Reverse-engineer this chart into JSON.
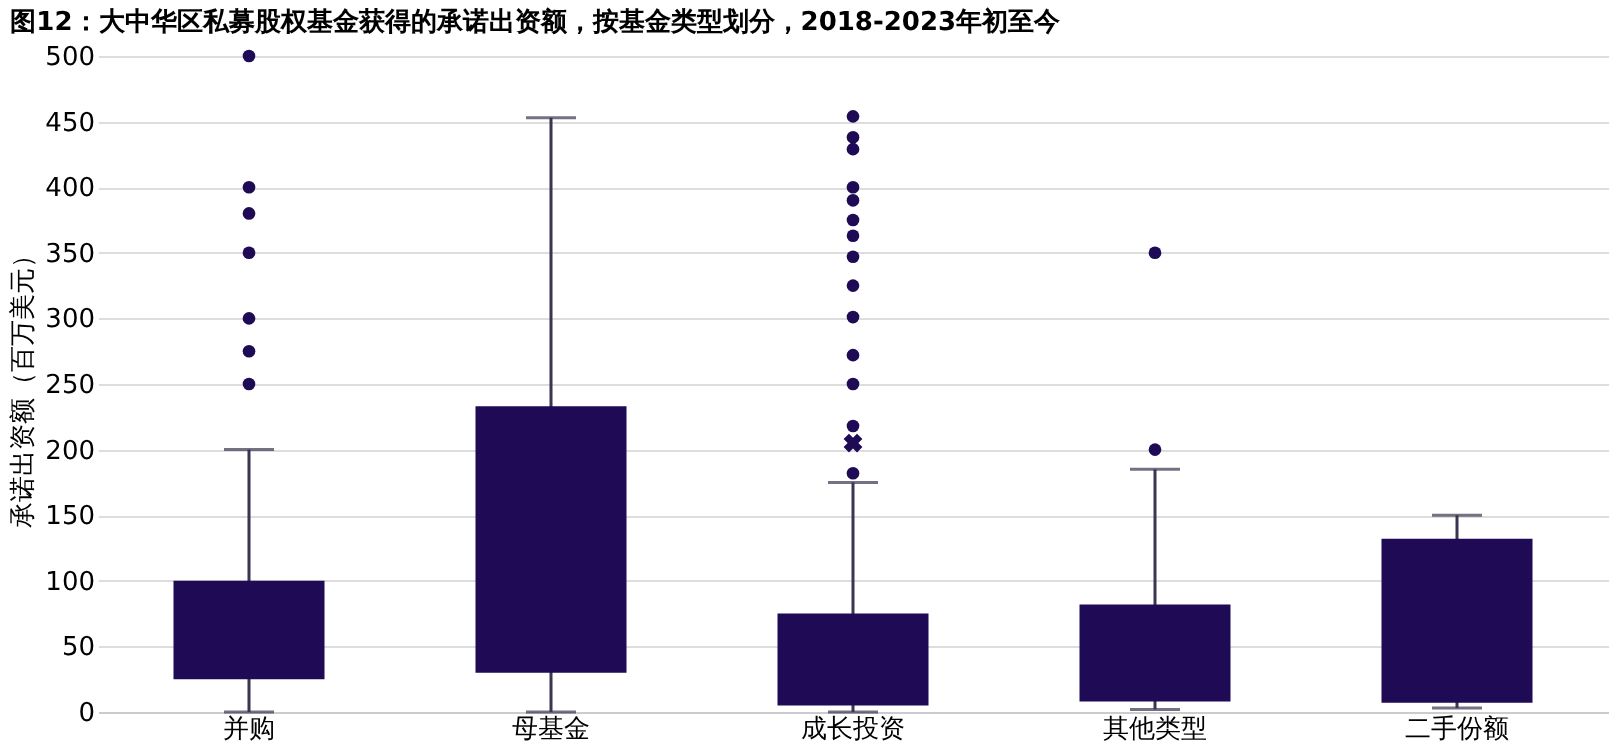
{
  "chart_data": {
    "type": "box",
    "title": "图12：大中华区私募股权基金获得的承诺出资额，按基金类型划分，2018-2023年初至今",
    "ylabel": "承诺出资额（百万美元）",
    "categories": [
      "并购",
      "母基金",
      "成长投资",
      "其他类型",
      "二手份额"
    ],
    "color": "#1e0a55",
    "boxes": [
      {
        "low": 0,
        "q1": 25,
        "q3": 100,
        "high": 200,
        "outliers": [
          250,
          275,
          300,
          350,
          380,
          400,
          500
        ]
      },
      {
        "low": 0,
        "q1": 30,
        "q3": 233,
        "high": 453
      },
      {
        "low": 0,
        "q1": 5,
        "q3": 75,
        "high": 175,
        "mean": 205,
        "outliers": [
          182,
          218,
          250,
          272,
          301,
          325,
          347,
          363,
          375,
          390,
          400,
          429,
          438,
          454
        ]
      },
      {
        "low": 2,
        "q1": 8,
        "q3": 82,
        "high": 185,
        "outliers": [
          200,
          350
        ]
      },
      {
        "low": 3,
        "q1": 7,
        "q3": 132,
        "high": 150
      }
    ],
    "ylim": [
      0,
      500
    ],
    "yticks": [
      0,
      50,
      100,
      150,
      200,
      250,
      300,
      350,
      400,
      450,
      500
    ],
    "grid": "y"
  }
}
